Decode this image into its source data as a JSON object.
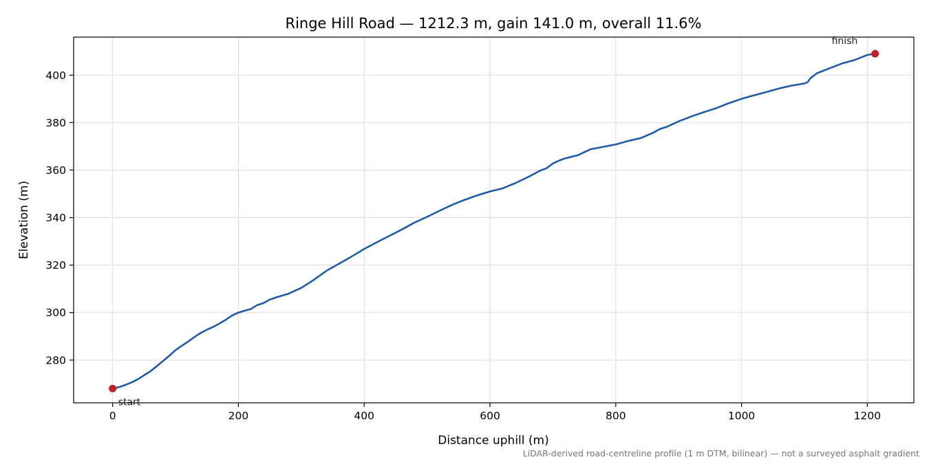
{
  "chart_data": {
    "type": "line",
    "title": "Ringe Hill Road — 1212.3 m, gain 141.0 m, overall 11.6%",
    "xlabel": "Distance uphill (m)",
    "ylabel": "Elevation (m)",
    "xlim": [
      -62,
      1274
    ],
    "ylim": [
      262,
      416
    ],
    "x_ticks": [
      0,
      200,
      400,
      600,
      800,
      1000,
      1200
    ],
    "y_ticks": [
      280,
      300,
      320,
      340,
      360,
      380,
      400
    ],
    "grid": true,
    "footnote": "LiDAR-derived road-centreline profile (1 m DTM, bilinear) — not a surveyed asphalt gradient",
    "line_color": "#1f5aa8",
    "marker_color": "#c0202a",
    "markers": [
      {
        "label": "start",
        "x": 0,
        "y": 268.0
      },
      {
        "label": "finish",
        "x": 1212.3,
        "y": 409.0
      }
    ],
    "series": [
      {
        "x": [
          0,
          10,
          20,
          30,
          40,
          50,
          60,
          70,
          80,
          90,
          100,
          110,
          120,
          130,
          140,
          150,
          160,
          170,
          180,
          190,
          200,
          210,
          220,
          230,
          240,
          250,
          260,
          280,
          300,
          320,
          340,
          360,
          380,
          400,
          420,
          440,
          460,
          480,
          500,
          520,
          540,
          560,
          580,
          600,
          620,
          640,
          660,
          680,
          690,
          700,
          710,
          720,
          740,
          760,
          780,
          800,
          820,
          840,
          860,
          870,
          880,
          900,
          920,
          940,
          960,
          980,
          1000,
          1020,
          1040,
          1060,
          1080,
          1100,
          1105,
          1110,
          1120,
          1140,
          1160,
          1180,
          1200,
          1212.3
        ],
        "y": [
          268.0,
          268.6,
          269.5,
          270.6,
          271.9,
          273.6,
          275.3,
          277.4,
          279.6,
          281.8,
          284.2,
          286.0,
          287.8,
          289.7,
          291.4,
          292.8,
          294.0,
          295.4,
          297.0,
          298.8,
          300.0,
          300.8,
          301.5,
          303.2,
          304.0,
          305.5,
          306.4,
          308.0,
          310.4,
          313.8,
          317.6,
          320.6,
          323.6,
          326.8,
          329.6,
          332.3,
          335.0,
          337.9,
          340.3,
          342.9,
          345.4,
          347.5,
          349.4,
          351.0,
          352.3,
          354.5,
          357.0,
          359.8,
          360.8,
          362.8,
          364.0,
          365.0,
          366.3,
          368.8,
          369.8,
          370.8,
          372.3,
          373.5,
          375.8,
          377.3,
          378.1,
          380.5,
          382.6,
          384.4,
          386.1,
          388.2,
          390.0,
          391.5,
          392.9,
          394.4,
          395.6,
          396.5,
          397.0,
          398.8,
          400.8,
          402.9,
          404.9,
          406.4,
          408.5,
          409.0
        ]
      }
    ]
  }
}
